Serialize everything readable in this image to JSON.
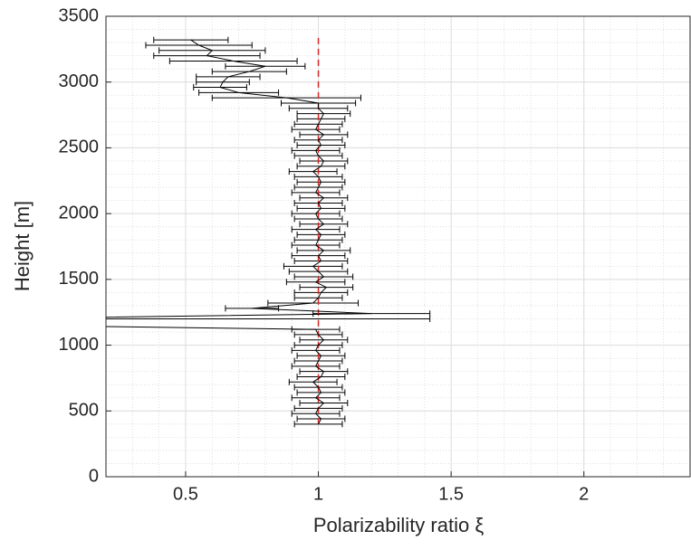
{
  "chart_data": {
    "type": "errorbar-profile",
    "xlabel": "Polarizability ratio ξ",
    "ylabel": "Height [m]",
    "xlim": [
      0.2,
      2.4
    ],
    "ylim": [
      0,
      3500
    ],
    "xticks": [
      0.5,
      1,
      1.5,
      2
    ],
    "yticks": [
      0,
      500,
      1000,
      1500,
      2000,
      2500,
      3000,
      3500
    ],
    "grid": true,
    "minor_grid": true,
    "series": [
      {
        "color": "#000000",
        "y": [
          400,
          440,
          480,
          520,
          560,
          600,
          640,
          680,
          720,
          760,
          800,
          840,
          880,
          920,
          960,
          1000,
          1040,
          1080,
          1120,
          1160,
          1200,
          1240,
          1280,
          1320,
          1360,
          1400,
          1440,
          1480,
          1520,
          1560,
          1600,
          1640,
          1680,
          1720,
          1760,
          1800,
          1840,
          1880,
          1920,
          1960,
          2000,
          2040,
          2080,
          2120,
          2160,
          2200,
          2240,
          2280,
          2320,
          2360,
          2400,
          2440,
          2480,
          2520,
          2560,
          2600,
          2640,
          2680,
          2720,
          2760,
          2800,
          2840,
          2880,
          2920,
          2960,
          3000,
          3040,
          3080,
          3120,
          3160,
          3200,
          3240,
          3280,
          3320
        ],
        "x": [
          1.0,
          1.01,
          0.99,
          1.0,
          1.02,
          0.99,
          1.01,
          1.0,
          0.98,
          1.01,
          1.02,
          0.99,
          1.0,
          1.01,
          0.99,
          1.0,
          1.02,
          1.0,
          0.99,
          -0.5,
          -0.25,
          1.2,
          0.75,
          0.98,
          1.0,
          1.01,
          1.03,
          0.99,
          1.02,
          1.0,
          0.98,
          1.01,
          1.0,
          1.02,
          0.99,
          1.0,
          1.01,
          0.99,
          1.02,
          1.0,
          0.99,
          1.01,
          1.0,
          1.02,
          0.99,
          1.0,
          1.01,
          1.0,
          0.98,
          1.01,
          1.02,
          1.0,
          0.99,
          1.01,
          1.0,
          1.02,
          0.99,
          1.0,
          1.01,
          1.02,
          1.0,
          1.0,
          0.88,
          0.7,
          0.63,
          0.64,
          0.66,
          0.74,
          0.8,
          0.68,
          0.58,
          0.6,
          0.55,
          0.52
        ],
        "xerr": [
          0.09,
          0.09,
          0.09,
          0.09,
          0.09,
          0.09,
          0.09,
          0.09,
          0.09,
          0.09,
          0.09,
          0.09,
          0.09,
          0.09,
          0.09,
          0.09,
          0.09,
          0.09,
          0.09,
          0.6,
          1.67,
          0.22,
          0.1,
          0.17,
          0.09,
          0.1,
          0.1,
          0.11,
          0.11,
          0.11,
          0.11,
          0.1,
          0.1,
          0.1,
          0.09,
          0.09,
          0.09,
          0.09,
          0.09,
          0.09,
          0.09,
          0.09,
          0.09,
          0.09,
          0.09,
          0.09,
          0.09,
          0.09,
          0.09,
          0.09,
          0.09,
          0.09,
          0.09,
          0.09,
          0.09,
          0.09,
          0.09,
          0.09,
          0.09,
          0.1,
          0.11,
          0.14,
          0.28,
          0.15,
          0.1,
          0.1,
          0.12,
          0.14,
          0.15,
          0.24,
          0.2,
          0.2,
          0.2,
          0.14
        ]
      }
    ],
    "reference_line": {
      "x": 1,
      "y": [
        400,
        3340
      ],
      "color": "#d62728"
    }
  }
}
